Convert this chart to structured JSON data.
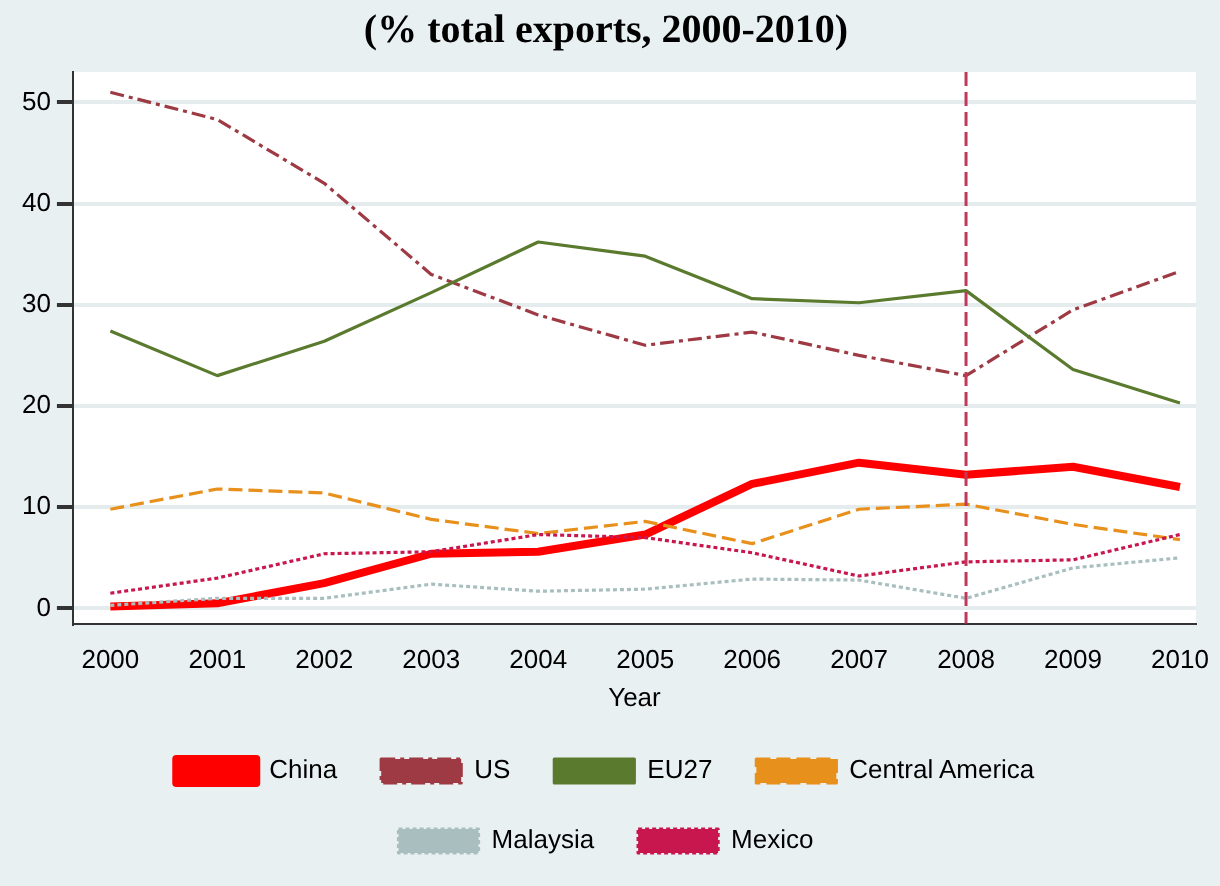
{
  "chart_data": {
    "type": "line",
    "title": "(% total exports, 2000-2010)",
    "xlabel": "Year",
    "x": [
      2000,
      2001,
      2002,
      2003,
      2004,
      2005,
      2006,
      2007,
      2008,
      2009,
      2010
    ],
    "xlim": [
      1999.65,
      2010.15
    ],
    "xticks": [
      2000,
      2001,
      2002,
      2003,
      2004,
      2005,
      2006,
      2007,
      2008,
      2009,
      2010
    ],
    "ylim": [
      -1.5,
      53
    ],
    "yticks": [
      0,
      10,
      20,
      30,
      40,
      50
    ],
    "grid": "y",
    "legend": "bottom",
    "marker": "none",
    "ref_lines": [
      {
        "axis": "x",
        "value": 2008,
        "color": "#c0395a",
        "line_style": "dashed"
      }
    ],
    "series": [
      {
        "name": "China",
        "color": "#ff0000",
        "line_style": "solid",
        "values": [
          0.2,
          0.5,
          2.5,
          5.4,
          5.6,
          7.3,
          12.3,
          14.4,
          13.2,
          14,
          12
        ]
      },
      {
        "name": "US",
        "color": "#9e3a44",
        "line_style": "dashdot",
        "values": [
          51,
          48.3,
          42,
          33,
          29,
          26,
          27.3,
          25,
          23,
          29.5,
          33.3
        ]
      },
      {
        "name": "EU27",
        "color": "#5a7a2e",
        "line_style": "solid",
        "values": [
          27.4,
          23,
          26.4,
          31.2,
          36.2,
          34.8,
          30.6,
          30.2,
          31.4,
          23.6,
          20.3
        ]
      },
      {
        "name": "Central America",
        "color": "#e8901c",
        "line_style": "dashed",
        "values": [
          9.8,
          11.8,
          11.4,
          8.8,
          7.4,
          8.6,
          6.4,
          9.8,
          10.3,
          8.3,
          6.8
        ]
      },
      {
        "name": "Malaysia",
        "color": "#a9bfbf",
        "line_style": "dotted",
        "values": [
          0.3,
          1,
          1,
          2.4,
          1.7,
          1.9,
          2.9,
          2.8,
          1,
          4,
          5
        ]
      },
      {
        "name": "Mexico",
        "color": "#c8164e",
        "line_style": "dotted",
        "values": [
          1.5,
          3,
          5.4,
          5.6,
          7.3,
          7,
          5.5,
          3.2,
          4.6,
          4.8,
          7.3
        ]
      }
    ]
  }
}
